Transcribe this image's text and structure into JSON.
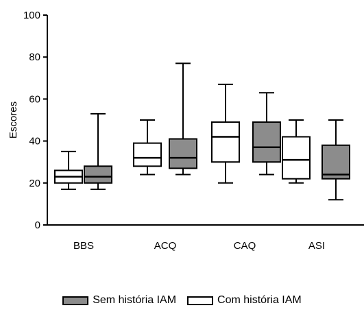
{
  "chart_data": {
    "type": "boxplot",
    "ylabel": "Escores",
    "xlabel": "",
    "ylim": [
      0,
      100
    ],
    "yticks": [
      0,
      20,
      40,
      60,
      80,
      100
    ],
    "categories": [
      "BBS",
      "ACQ",
      "CAQ",
      "ASI"
    ],
    "legend_position": "bottom",
    "series": [
      {
        "name": "Com história IAM",
        "color": "#ffffff",
        "boxes": [
          {
            "min": 17,
            "q1": 20,
            "median": 23,
            "q3": 26,
            "max": 35
          },
          {
            "min": 24,
            "q1": 28,
            "median": 32,
            "q3": 39,
            "max": 50
          },
          {
            "min": 20,
            "q1": 30,
            "median": 42,
            "q3": 49,
            "max": 67
          },
          {
            "min": 20,
            "q1": 22,
            "median": 31,
            "q3": 42,
            "max": 50
          }
        ]
      },
      {
        "name": "Sem história IAM",
        "color": "#8c8c8c",
        "boxes": [
          {
            "min": 17,
            "q1": 20,
            "median": 23,
            "q3": 28,
            "max": 53
          },
          {
            "min": 24,
            "q1": 27,
            "median": 32,
            "q3": 41,
            "max": 77
          },
          {
            "min": 24,
            "q1": 30,
            "median": 37,
            "q3": 49,
            "max": 63
          },
          {
            "min": 12,
            "q1": 22,
            "median": 24,
            "q3": 38,
            "max": 50
          }
        ]
      }
    ]
  },
  "legend": {
    "items": [
      {
        "label": "Sem história IAM",
        "color": "#8c8c8c"
      },
      {
        "label": "Com história IAM",
        "color": "#ffffff"
      }
    ]
  }
}
